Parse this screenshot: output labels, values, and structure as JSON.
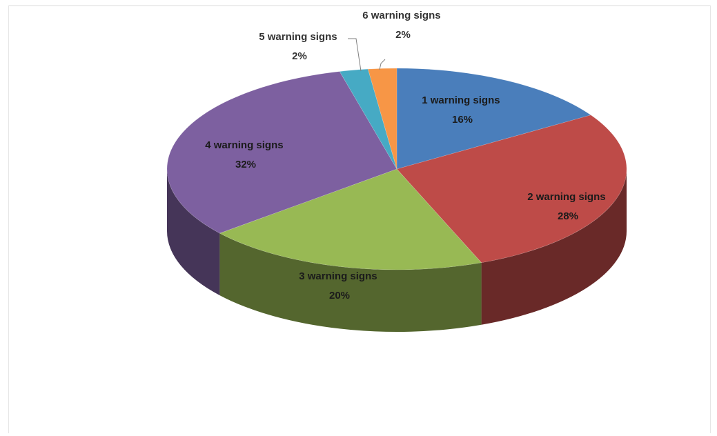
{
  "chart_data": {
    "type": "pie",
    "categories": [
      "1 warning signs",
      "2 warning signs",
      "3 warning signs",
      "4 warning signs",
      "5 warning signs",
      "6 warning signs"
    ],
    "values": [
      16,
      28,
      20,
      32,
      2,
      2
    ],
    "value_labels": [
      "16%",
      "28%",
      "20%",
      "32%",
      "2%",
      "2%"
    ],
    "colors": [
      "#4a7ebb",
      "#be4b48",
      "#98b954",
      "#7d60a0",
      "#46aac4",
      "#f79646"
    ],
    "style": "3d",
    "legend": "none",
    "title": ""
  }
}
